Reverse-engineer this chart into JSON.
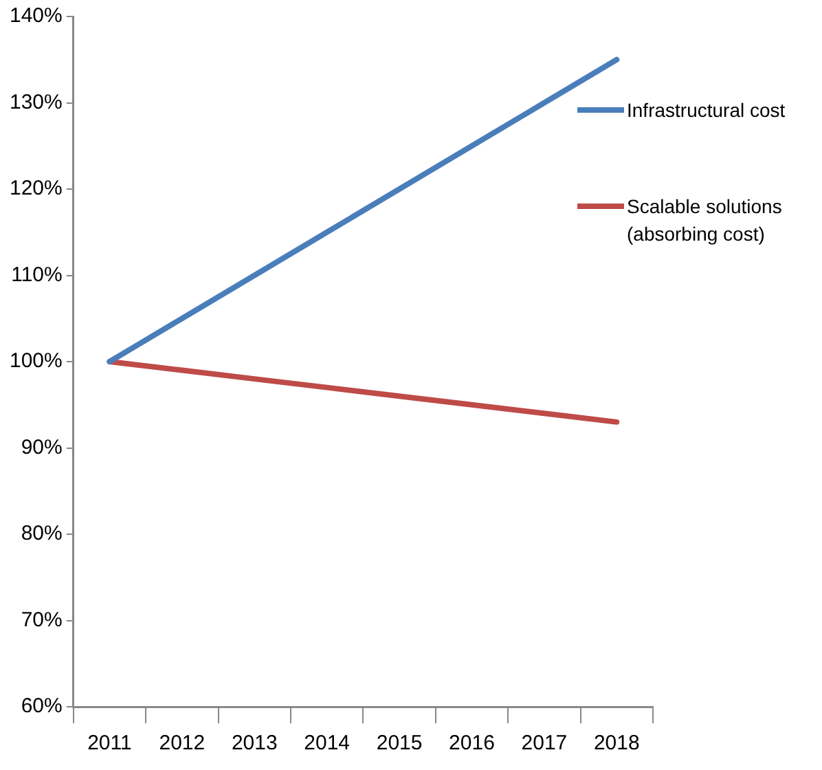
{
  "chart_data": {
    "type": "line",
    "categories": [
      "2011",
      "2012",
      "2013",
      "2014",
      "2015",
      "2016",
      "2017",
      "2018"
    ],
    "series": [
      {
        "name": "Infrastructural cost",
        "color": "#4a7ebb",
        "values": [
          100,
          105,
          110,
          115,
          120,
          125,
          130,
          135
        ]
      },
      {
        "name": "Scalable solutions (absorbing cost)",
        "color": "#be4b48",
        "values": [
          100,
          99,
          98,
          97,
          96,
          95,
          94,
          93
        ]
      }
    ],
    "ylim": [
      60,
      140
    ],
    "yticks": [
      {
        "value": 60,
        "label": "60%"
      },
      {
        "value": 70,
        "label": "70%"
      },
      {
        "value": 80,
        "label": "80%"
      },
      {
        "value": 90,
        "label": "90%"
      },
      {
        "value": 100,
        "label": "100%"
      },
      {
        "value": 110,
        "label": "110%"
      },
      {
        "value": 120,
        "label": "120%"
      },
      {
        "value": 130,
        "label": "130%"
      },
      {
        "value": 140,
        "label": "140%"
      }
    ],
    "grid": false,
    "legend": "right",
    "marker": "none",
    "line_style": "solid"
  }
}
